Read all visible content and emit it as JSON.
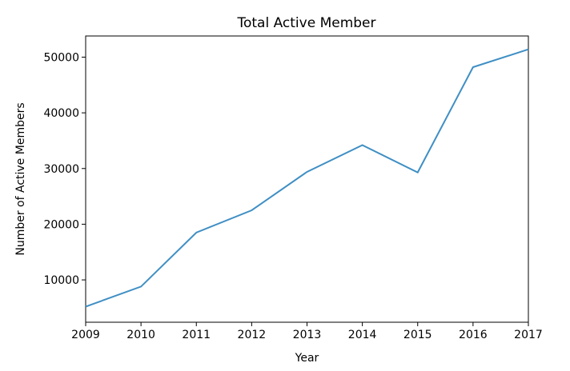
{
  "chart_data": {
    "type": "line",
    "title": "Total Active Member",
    "xlabel": "Year",
    "ylabel": "Number of Active Members",
    "x": [
      2009,
      2010,
      2011,
      2012,
      2013,
      2014,
      2015,
      2016,
      2017
    ],
    "xticks": [
      2009,
      2010,
      2011,
      2012,
      2013,
      2014,
      2015,
      2016,
      2017
    ],
    "yticks": [
      10000,
      20000,
      30000,
      40000,
      50000
    ],
    "xlim": [
      2009,
      2017
    ],
    "ylim": [
      2400,
      53800
    ],
    "series": [
      {
        "values": [
          5200,
          8800,
          18500,
          22500,
          29400,
          34200,
          29300,
          48200,
          51400
        ],
        "color": "#3f8fc4"
      }
    ],
    "grid": false,
    "legend": "none"
  }
}
